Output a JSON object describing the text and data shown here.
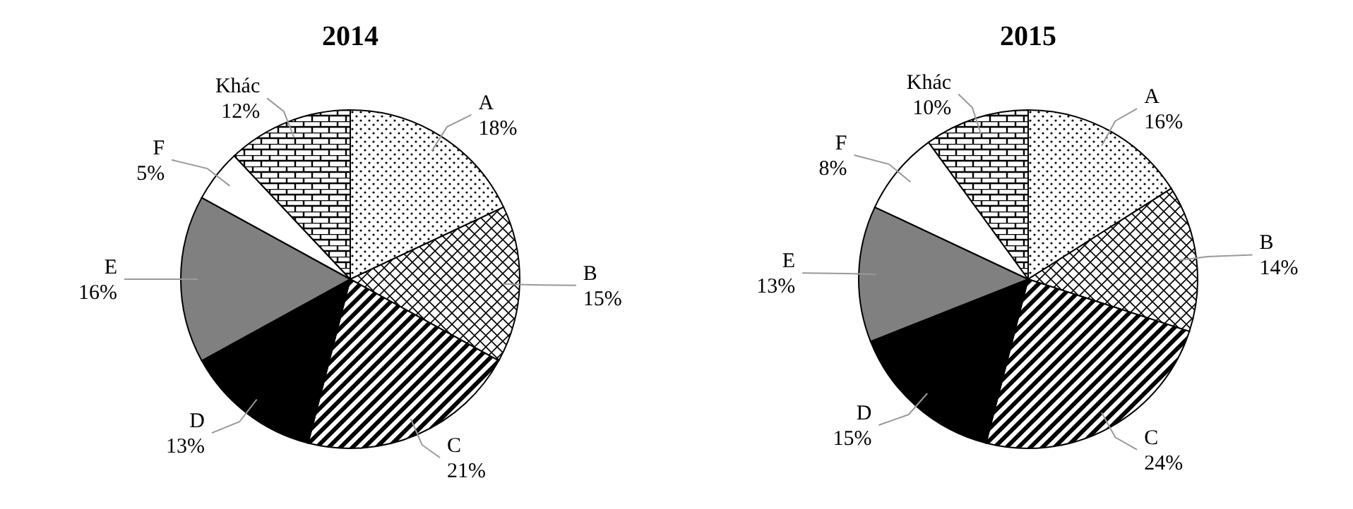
{
  "chart_data": [
    {
      "type": "pie",
      "title": "2014",
      "categories": [
        "A",
        "B",
        "C",
        "D",
        "E",
        "F",
        "Khác"
      ],
      "values": [
        18,
        15,
        21,
        13,
        16,
        5,
        12
      ],
      "value_labels": [
        "18%",
        "15%",
        "21%",
        "13%",
        "16%",
        "5%",
        "12%"
      ],
      "colors": [
        "#000000",
        "#000000",
        "#000000",
        "#000000",
        "#808080",
        "#ffffff",
        "#000000"
      ]
    },
    {
      "type": "pie",
      "title": "2015",
      "categories": [
        "A",
        "B",
        "C",
        "D",
        "E",
        "F",
        "Khác"
      ],
      "values": [
        16,
        14,
        24,
        15,
        13,
        8,
        10
      ],
      "value_labels": [
        "16%",
        "14%",
        "24%",
        "15%",
        "13%",
        "8%",
        "10%"
      ],
      "colors": [
        "#000000",
        "#000000",
        "#000000",
        "#000000",
        "#808080",
        "#ffffff",
        "#000000"
      ]
    }
  ]
}
